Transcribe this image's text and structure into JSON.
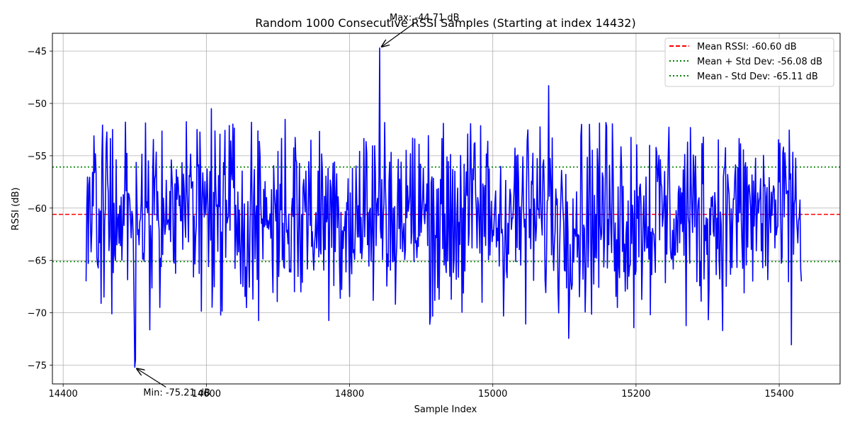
{
  "chart_data": {
    "type": "line",
    "title": "Random 1000 Consecutive RSSI Samples (Starting at index 14432)",
    "xlabel": "Sample Index",
    "ylabel": "RSSI (dB)",
    "xlim": [
      14385,
      15485
    ],
    "ylim": [
      -76.8,
      -43.3
    ],
    "x_ticks": [
      14400,
      14600,
      14800,
      15000,
      15200,
      15400
    ],
    "y_ticks": [
      -75,
      -70,
      -65,
      -60,
      -55,
      -50,
      -45
    ],
    "x_tick_labels": [
      "14400",
      "14600",
      "14800",
      "15000",
      "15200",
      "15400"
    ],
    "y_tick_labels": [
      "−75",
      "−70",
      "−65",
      "−60",
      "−55",
      "−50",
      "−45"
    ],
    "grid": true,
    "legend_position": "top-right",
    "series": [
      {
        "name": "RSSI",
        "color": "#0000ff",
        "x_start": 14432,
        "x_end": 15431,
        "count": 1000,
        "mean": -60.6,
        "std": 4.52,
        "min": -75.21,
        "max": -44.71,
        "pinned_points": [
          {
            "x": 14432,
            "y": -67.0
          },
          {
            "x": 14500,
            "y": -75.21
          },
          {
            "x": 14501,
            "y": -74.5
          },
          {
            "x": 14842,
            "y": -44.71
          },
          {
            "x": 15078,
            "y": -48.3
          },
          {
            "x": 14607,
            "y": -50.5
          },
          {
            "x": 15431,
            "y": -67.0
          }
        ]
      }
    ],
    "reference_lines": [
      {
        "name": "Mean RSSI: -60.60 dB",
        "y": -60.6,
        "color": "#ff0000",
        "style": "dashed"
      },
      {
        "name": "Mean + Std Dev: -56.08 dB",
        "y": -56.08,
        "color": "#008000",
        "style": "dotted"
      },
      {
        "name": "Mean - Std Dev: -65.11 dB",
        "y": -65.11,
        "color": "#008000",
        "style": "dotted"
      }
    ],
    "annotations": [
      {
        "text": "Max: -44.71 dB",
        "x": 14842,
        "y": -44.71
      },
      {
        "text": "Min: -75.21 dB",
        "x": 14500,
        "y": -75.21
      }
    ]
  }
}
